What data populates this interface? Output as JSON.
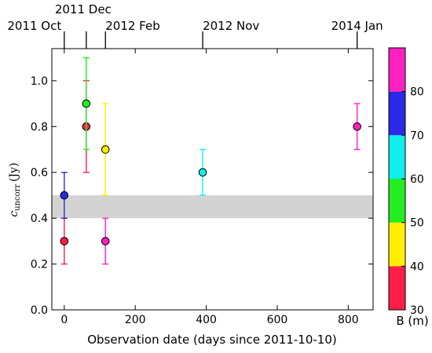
{
  "chart_data": {
    "type": "scatter",
    "title": "",
    "xlabel": "Observation date (days since 2011-10-10)",
    "ylabel_main": "c",
    "ylabel_sub": "uncorr",
    "ylabel_unit": "(Jy)",
    "xlim": [
      -35,
      870
    ],
    "ylim": [
      0.0,
      1.14
    ],
    "x_ticks": [
      0,
      200,
      400,
      600,
      800
    ],
    "y_ticks": [
      0.0,
      0.2,
      0.4,
      0.6,
      0.8,
      1.0
    ],
    "y_tick_labels": [
      "0.0",
      "0.2",
      "0.4",
      "0.6",
      "0.8",
      "1.0"
    ],
    "top_axis_ticks": [
      {
        "label": "2011 Oct",
        "x": 0
      },
      {
        "label": "2011 Dec",
        "x": 62
      },
      {
        "label": "2012 Feb",
        "x": 116
      },
      {
        "label": "2012 Nov",
        "x": 390
      },
      {
        "label": "2014 Jan",
        "x": 825
      }
    ],
    "shaded_band": {
      "ymin": 0.4,
      "ymax": 0.5,
      "color": "#d3d3d3"
    },
    "points": [
      {
        "x": 0,
        "y": 0.3,
        "yerr": 0.1,
        "color": "#ff1e46"
      },
      {
        "x": 0,
        "y": 0.5,
        "yerr": 0.1,
        "color": "#2a2ae6"
      },
      {
        "x": 62,
        "y": 0.8,
        "yerr": 0.2,
        "color": "#ff1e46"
      },
      {
        "x": 62,
        "y": 0.9,
        "yerr": 0.2,
        "color": "#22ee22"
      },
      {
        "x": 116,
        "y": 0.3,
        "yerr": 0.1,
        "color": "#ff20c0"
      },
      {
        "x": 116,
        "y": 0.7,
        "yerr": 0.2,
        "color": "#ffee00"
      },
      {
        "x": 390,
        "y": 0.6,
        "yerr": 0.1,
        "color": "#11eeee"
      },
      {
        "x": 825,
        "y": 0.8,
        "yerr": 0.1,
        "color": "#ff20c0"
      }
    ],
    "colorbar": {
      "label": "B (m)",
      "range": [
        30,
        90
      ],
      "ticks": [
        30,
        40,
        50,
        60,
        70,
        80
      ],
      "segments": [
        {
          "from": 30,
          "to": 40,
          "color": "#ff1e46"
        },
        {
          "from": 40,
          "to": 50,
          "color": "#ffee00"
        },
        {
          "from": 50,
          "to": 60,
          "color": "#22ee22"
        },
        {
          "from": 60,
          "to": 70,
          "color": "#11eeee"
        },
        {
          "from": 70,
          "to": 80,
          "color": "#2a2ae6"
        },
        {
          "from": 80,
          "to": 90,
          "color": "#ff20c0"
        }
      ]
    }
  }
}
